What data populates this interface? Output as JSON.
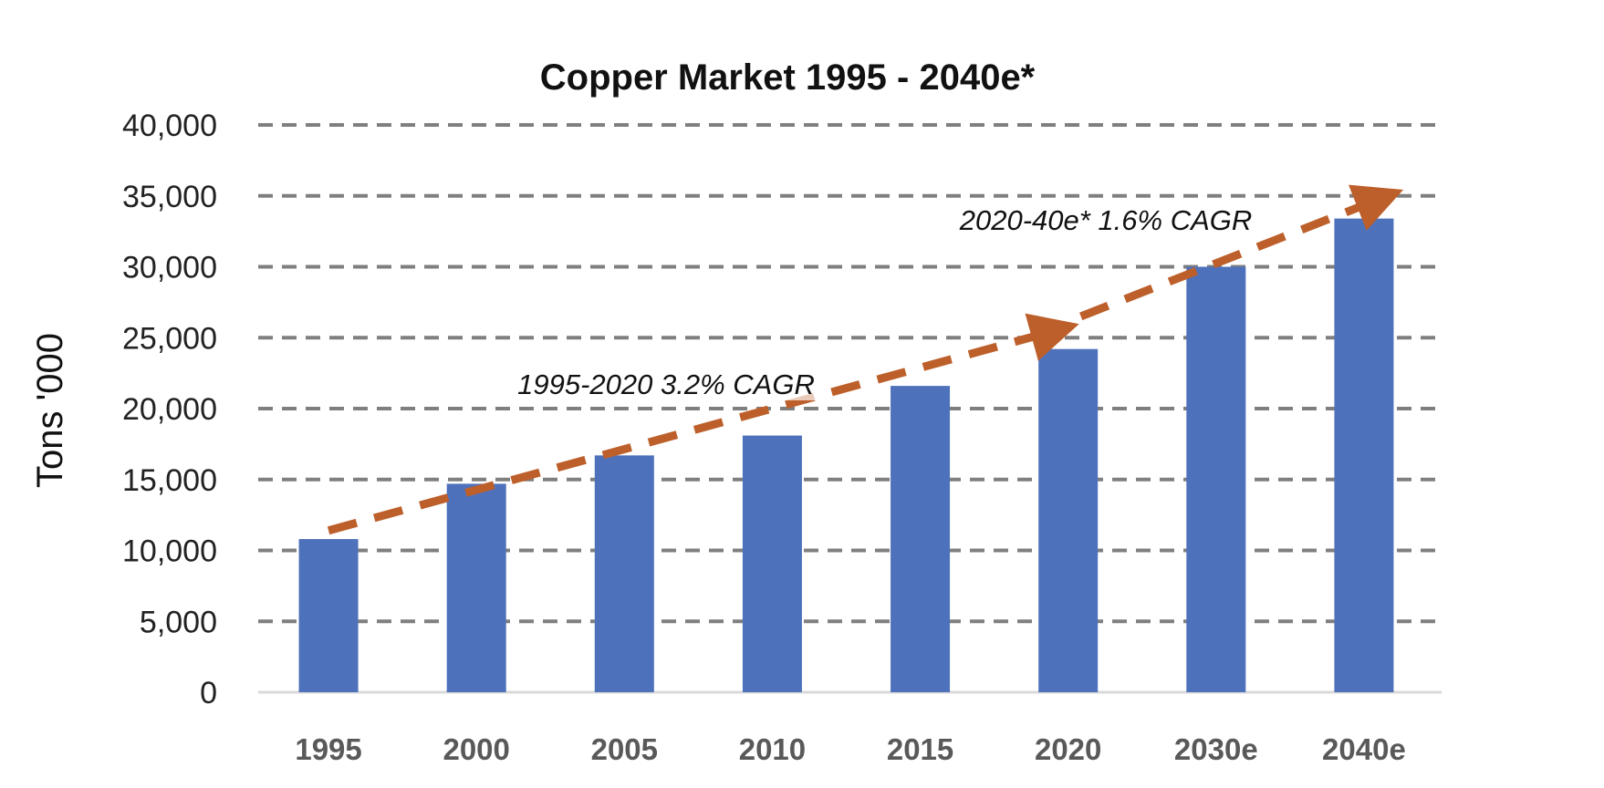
{
  "chart_data": {
    "type": "bar",
    "title": "Copper Market 1995 - 2040e*",
    "xlabel": "",
    "ylabel": "Tons '000",
    "categories": [
      "1995",
      "2000",
      "2005",
      "2010",
      "2015",
      "2020",
      "2030e",
      "2040e"
    ],
    "values": [
      10800,
      14700,
      16700,
      18100,
      21600,
      24200,
      30000,
      33400
    ],
    "ylim": [
      0,
      40000
    ],
    "yticks": [
      0,
      5000,
      10000,
      15000,
      20000,
      25000,
      30000,
      35000,
      40000
    ],
    "ytick_labels": [
      "0",
      "5,000",
      "10,000",
      "15,000",
      "20,000",
      "25,000",
      "30,000",
      "35,000",
      "40,000"
    ],
    "grid": true,
    "grid_style": "dashed",
    "legend": "none",
    "colors": {
      "bar": "#4e71bb",
      "trend": "#bd5f2a",
      "grid": "#7f7f7f"
    },
    "annotations": [
      {
        "text": "1995-2020  3.2% CAGR",
        "from": {
          "x": "1995",
          "y": 11400
        },
        "to": {
          "x": "2020",
          "y": 25500
        }
      },
      {
        "text": "2020-40e*  1.6% CAGR",
        "from": {
          "x": "2020",
          "y": 26500
        },
        "to": {
          "x": "2040e",
          "y": 34800
        }
      }
    ]
  }
}
